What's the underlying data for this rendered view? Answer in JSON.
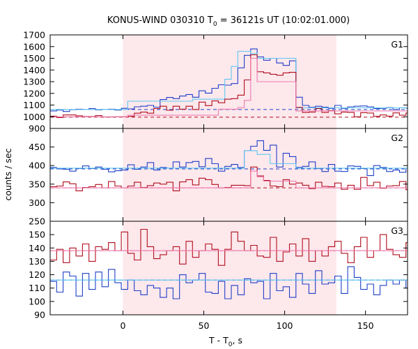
{
  "title": {
    "main": "KONUS-WIND 030310 T",
    "sub": "0",
    "rest": " = 36121s UT (10:02:01.000)"
  },
  "axes": {
    "xlabel_main": "T - T",
    "xlabel_sub": "0",
    "xlabel_rest": ", s",
    "ylabel": "counts / sec",
    "x_ticks": [
      "0",
      "50",
      "100",
      "150"
    ]
  },
  "colors": {
    "blue": "#1f3fc8",
    "cyan": "#5fc8f0",
    "red": "#b00d1c",
    "pink": "#f07ab0",
    "shade": "#fde8ec"
  },
  "chart_data": {
    "type": "line",
    "xlim": [
      -45,
      176
    ],
    "shaded_interval": [
      0,
      132
    ],
    "x_ticks": [
      0,
      50,
      100,
      150
    ],
    "bin_width": 4,
    "panels": [
      {
        "label": "G1",
        "ylim": [
          900,
          1700
        ],
        "y_ticks": [
          900,
          1000,
          1100,
          1200,
          1300,
          1400,
          1500,
          1600,
          1700
        ],
        "background_levels": {
          "blue": 1062,
          "red": 996
        },
        "series": [
          {
            "color": "blue",
            "values": [
              1050,
              1057,
              1045,
              1060,
              1065,
              1062,
              1070,
              1058,
              1062,
              1065,
              1057,
              1072,
              1067,
              1085,
              1090,
              1097,
              1082,
              1147,
              1165,
              1155,
              1177,
              1190,
              1167,
              1222,
              1202,
              1243,
              1273,
              1270,
              1284,
              1418,
              1525,
              1580,
              1512,
              1483,
              1500,
              1460,
              1439,
              1478,
              1167,
              1097,
              1080,
              1090,
              1082,
              1072,
              1097,
              1072,
              1085,
              1090,
              1092,
              1085,
              1070,
              1072,
              1078,
              1062,
              1077,
              1073,
              1067,
              1067,
              1060,
              1060,
              1050
            ]
          },
          {
            "color": "cyan",
            "values": [
              1062,
              1062,
              1062,
              1062,
              1062,
              1062,
              1062,
              1062,
              1062,
              1062,
              1062,
              1062,
              1133,
              1133,
              1133,
              1133,
              1133,
              1133,
              1133,
              1133,
              1133,
              1133,
              1150,
              1150,
              1150,
              1150,
              1150,
              1320,
              1430,
              1560,
              1560,
              1540,
              1500,
              1500,
              1500,
              1500,
              1500,
              1500,
              1076,
              1076,
              1076,
              1076,
              1076,
              1076,
              1076,
              1076,
              1076,
              1076,
              1076,
              1076,
              1076,
              1076,
              1076,
              1076,
              1076,
              1076,
              1076,
              1076,
              1076,
              1076,
              1076
            ]
          },
          {
            "color": "red",
            "values": [
              1005,
              993,
              1015,
              1015,
              1008,
              1002,
              1002,
              1010,
              998,
              998,
              1000,
              1000,
              1003,
              1030,
              1040,
              1030,
              1070,
              1090,
              1055,
              1090,
              1065,
              1090,
              1062,
              1125,
              1095,
              1135,
              1120,
              1150,
              1155,
              1185,
              1315,
              1530,
              1385,
              1375,
              1363,
              1355,
              1375,
              1380,
              1080,
              1037,
              1040,
              1070,
              1037,
              1052,
              1025,
              1040,
              1037,
              1000,
              1035,
              1032,
              1003,
              1015,
              1005,
              1033,
              1013,
              1032,
              1015,
              1028,
              1008,
              1020,
              1000
            ]
          },
          {
            "color": "pink",
            "values": [
              1000,
              1000,
              1000,
              1000,
              1000,
              1000,
              1000,
              1000,
              1000,
              1000,
              1000,
              1000,
              1013,
              1013,
              1013,
              1013,
              1013,
              1013,
              1013,
              1013,
              1013,
              1013,
              1013,
              1013,
              1013,
              1013,
              1065,
              1065,
              1065,
              1078,
              1140,
              1500,
              1300,
              1300,
              1300,
              1300,
              1300,
              1300,
              1050,
              1050,
              1050,
              1050,
              1050,
              1050,
              1050,
              1050,
              1050,
              1050,
              1050,
              1050,
              1050,
              1050,
              1050,
              1050,
              1050,
              1050,
              1050,
              1050,
              1050,
              1050,
              1050
            ]
          }
        ]
      },
      {
        "label": "G2",
        "ylim": [
          250,
          500
        ],
        "y_ticks": [
          250,
          300,
          350,
          400,
          450
        ],
        "background_levels": {
          "blue": 391,
          "red": 340
        },
        "series": [
          {
            "color": "blue",
            "values": [
              395,
              391,
              390,
              385,
              392,
              399,
              392,
              396,
              390,
              383,
              386,
              388,
              402,
              390,
              396,
              408,
              388,
              395,
              393,
              410,
              396,
              408,
              411,
              397,
              419,
              405,
              385,
              398,
              403,
              395,
              440,
              452,
              467,
              441,
              455,
              396,
              433,
              424,
              395,
              398,
              410,
              392,
              384,
              403,
              385,
              384,
              399,
              398,
              392,
              373,
              400,
              395,
              384,
              388,
              382,
              393,
              405,
              398,
              387,
              399,
              393
            ]
          },
          {
            "color": "cyan",
            "values": [
              393,
              393,
              393,
              393,
              393,
              393,
              393,
              393,
              393,
              393,
              393,
              393,
              393,
              393,
              393,
              393,
              393,
              393,
              393,
              393,
              393,
              393,
              393,
              393,
              393,
              393,
              393,
              393,
              393,
              393,
              440,
              440,
              430,
              430,
              405,
              405,
              405,
              405,
              393,
              393,
              393,
              393,
              393,
              393,
              393,
              393,
              393,
              393,
              393,
              393,
              393,
              393,
              393,
              393,
              393,
              393,
              393,
              393,
              393,
              393,
              393
            ]
          },
          {
            "color": "red",
            "values": [
              343,
              345,
              356,
              351,
              332,
              341,
              343,
              349,
              340,
              357,
              345,
              340,
              345,
              355,
              341,
              346,
              353,
              350,
              355,
              332,
              356,
              362,
              348,
              366,
              362,
              349,
              340,
              341,
              347,
              347,
              346,
              396,
              372,
              360,
              345,
              343,
              362,
              350,
              353,
              347,
              338,
              355,
              344,
              343,
              353,
              336,
              347,
              336,
              368,
              346,
              355,
              339,
              345,
              346,
              357,
              335,
              345,
              343,
              350,
              339,
              345
            ]
          },
          {
            "color": "pink",
            "values": [
              340,
              340,
              340,
              340,
              340,
              340,
              340,
              340,
              340,
              340,
              340,
              340,
              340,
              340,
              340,
              340,
              340,
              340,
              340,
              340,
              340,
              340,
              340,
              340,
              340,
              340,
              340,
              340,
              340,
              340,
              340,
              385,
              370,
              358,
              358,
              358,
              358,
              358,
              340,
              340,
              340,
              340,
              340,
              340,
              340,
              340,
              340,
              340,
              340,
              340,
              340,
              340,
              340,
              340,
              340,
              340,
              340,
              340,
              340,
              340,
              340
            ]
          }
        ]
      },
      {
        "label": "G3",
        "ylim": [
          90,
          160
        ],
        "y_ticks": [
          90,
          100,
          110,
          120,
          130,
          140,
          150
        ],
        "background_levels": {
          "blue": 116,
          "red": 138
        },
        "series": [
          {
            "color": "blue",
            "values": [
              115,
              107,
              122,
              119,
              104,
              121,
              109,
              122,
              111,
              124,
              114,
              109,
              116,
              108,
              105,
              112,
              110,
              103,
              110,
              102,
              120,
              114,
              116,
              121,
              107,
              106,
              115,
              102,
              112,
              105,
              117,
              114,
              115,
              102,
              121,
              108,
              111,
              103,
              121,
              113,
              106,
              123,
              113,
              114,
              119,
              106,
              126,
              118,
              109,
              113,
              105,
              112,
              116,
              113,
              116,
              110,
              106,
              112,
              111,
              123,
              108
            ]
          },
          {
            "color": "cyan",
            "values": [
              116,
              116,
              116,
              116,
              116,
              116,
              116,
              116,
              116,
              116,
              116,
              116,
              116,
              116,
              116,
              116,
              116,
              116,
              116,
              116,
              116,
              116,
              116,
              116,
              116,
              116,
              116,
              116,
              116,
              116,
              116,
              116,
              116,
              116,
              116,
              116,
              116,
              116,
              116,
              116,
              116,
              116,
              116,
              116,
              116,
              116,
              116,
              116,
              116,
              116,
              116,
              116,
              116,
              116,
              116,
              116,
              116,
              116,
              116,
              116,
              116
            ]
          },
          {
            "color": "red",
            "values": [
              131,
              139,
              129,
              140,
              134,
              143,
              130,
              141,
              139,
              144,
              138,
              152,
              136,
              131,
              154,
              141,
              132,
              135,
              138,
              141,
              128,
              145,
              133,
              138,
              143,
              139,
              127,
              139,
              152,
              145,
              138,
              142,
              134,
              133,
              148,
              130,
              137,
              143,
              134,
              147,
              130,
              138,
              134,
              141,
              145,
              136,
              129,
              141,
              148,
              133,
              138,
              150,
              139,
              135,
              133,
              144,
              129,
              142,
              138,
              132,
              149
            ]
          },
          {
            "color": "pink",
            "values": [
              138,
              138,
              138,
              138,
              138,
              138,
              138,
              138,
              138,
              138,
              138,
              138,
              138,
              138,
              138,
              138,
              138,
              138,
              138,
              138,
              138,
              138,
              138,
              138,
              138,
              138,
              138,
              138,
              138,
              138,
              138,
              138,
              138,
              138,
              138,
              138,
              138,
              138,
              138,
              138,
              138,
              138,
              138,
              138,
              138,
              138,
              138,
              138,
              138,
              138,
              138,
              138,
              138,
              138,
              138,
              138,
              138,
              138,
              138,
              138,
              138
            ]
          }
        ]
      }
    ]
  }
}
